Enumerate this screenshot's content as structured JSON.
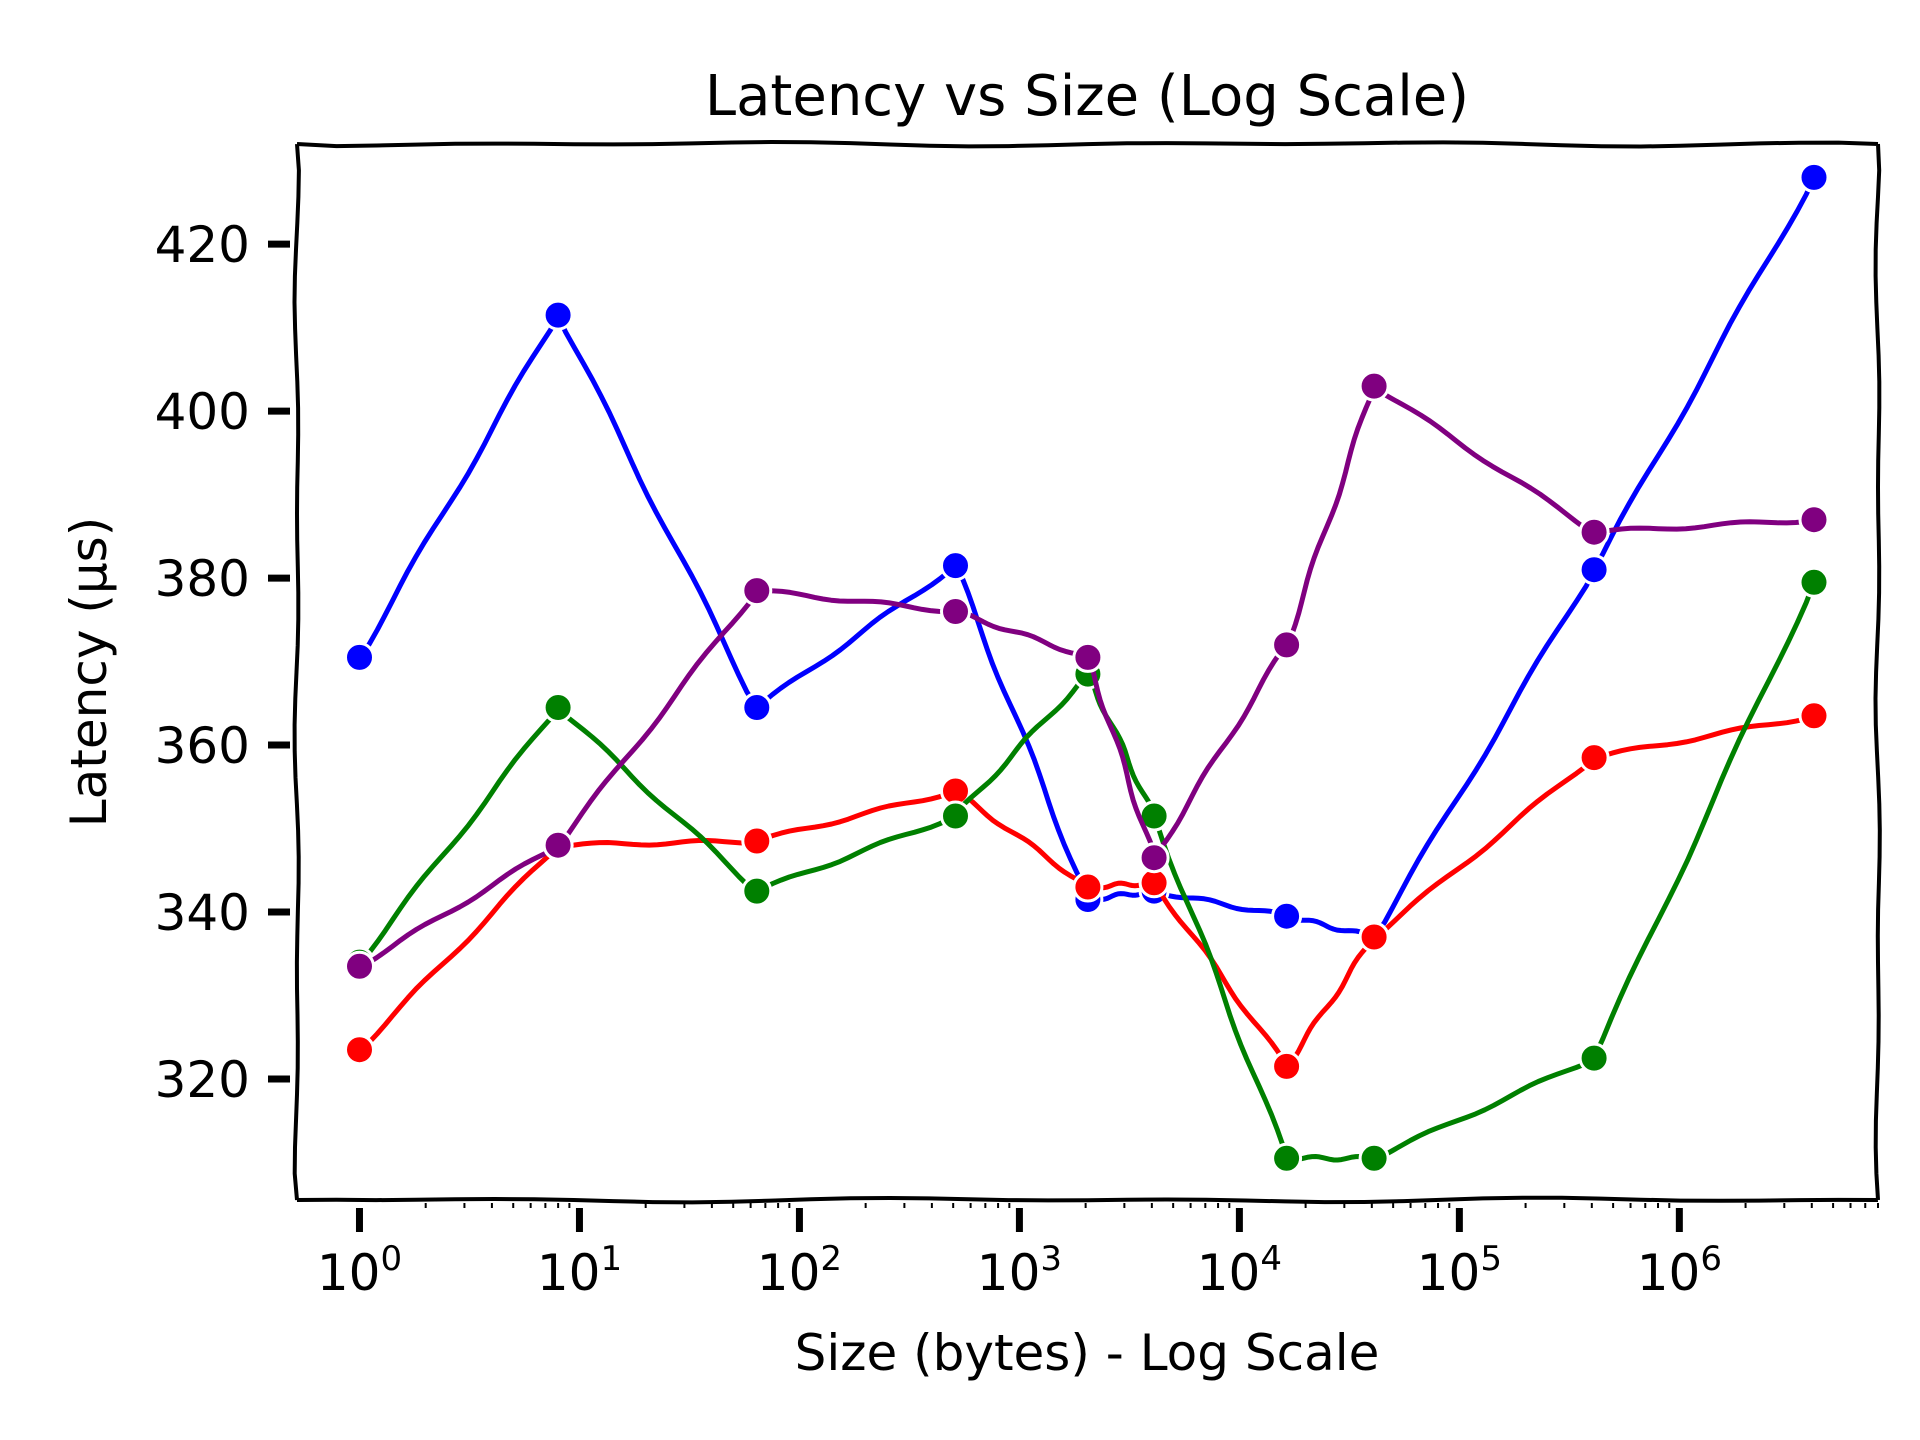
{
  "chart_data": {
    "type": "line",
    "title": "Latency vs Size (Log Scale)",
    "xlabel": "Size (bytes) - Log Scale",
    "ylabel": "Latency (µs)",
    "xscale": "log",
    "xlim": [
      0.52,
      8000000
    ],
    "ylim": [
      305.5,
      432
    ],
    "x_ticks": [
      {
        "exp": 0,
        "base": "10",
        "sup": "0"
      },
      {
        "exp": 1,
        "base": "10",
        "sup": "1"
      },
      {
        "exp": 2,
        "base": "10",
        "sup": "2"
      },
      {
        "exp": 3,
        "base": "10",
        "sup": "3"
      },
      {
        "exp": 4,
        "base": "10",
        "sup": "4"
      },
      {
        "exp": 5,
        "base": "10",
        "sup": "5"
      },
      {
        "exp": 6,
        "base": "10",
        "sup": "6"
      }
    ],
    "y_ticks": [
      320,
      340,
      360,
      380,
      400,
      420
    ],
    "grid": false,
    "legend": "none",
    "x": [
      1,
      8,
      64,
      512,
      2048,
      4096,
      16384,
      40960,
      409600,
      4096000
    ],
    "series": [
      {
        "name": "blue",
        "color": "#0000ff",
        "values": [
          370.5,
          411.5,
          364.5,
          381.5,
          341.5,
          342.5,
          339.5,
          337,
          381,
          428
        ]
      },
      {
        "name": "red",
        "color": "#ff0000",
        "values": [
          323.5,
          348,
          348.5,
          354.5,
          343,
          343.5,
          321.5,
          337,
          358.5,
          363.5
        ]
      },
      {
        "name": "green",
        "color": "#008000",
        "values": [
          334,
          364.5,
          342.5,
          351.5,
          368.5,
          351.5,
          310.5,
          310.5,
          322.5,
          379.5
        ]
      },
      {
        "name": "purple",
        "color": "#800080",
        "values": [
          333.5,
          348,
          378.5,
          376,
          370.5,
          346.5,
          372,
          403,
          385.5,
          387
        ]
      }
    ]
  }
}
